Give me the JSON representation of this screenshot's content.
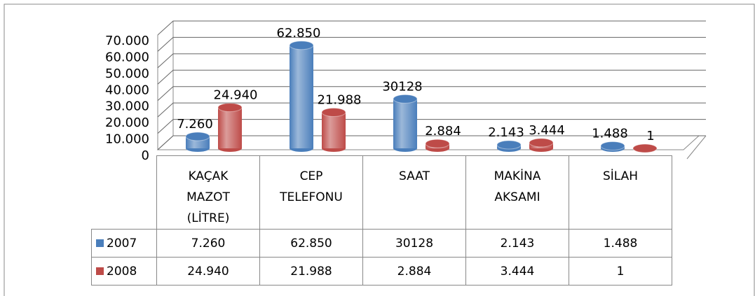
{
  "chart_data": {
    "type": "bar",
    "categories": [
      "KAÇAK MAZOT (LİTRE)",
      "CEP TELEFONU",
      "SAAT",
      "MAKİNA AKSAMI",
      "SİLAH"
    ],
    "series": [
      {
        "name": "2007",
        "color": "#4a7ebb",
        "values": [
          7260,
          62850,
          30128,
          2143,
          1488
        ],
        "value_labels": [
          "7.260",
          "62.850",
          "30128",
          "2.143",
          "1.488"
        ]
      },
      {
        "name": "2008",
        "color": "#be4b48",
        "values": [
          24940,
          21988,
          2884,
          3444,
          1
        ],
        "value_labels": [
          "24.940",
          "21.988",
          "2.884",
          "3.444",
          "1"
        ]
      }
    ],
    "ylim": [
      0,
      70000
    ],
    "yticks": [
      0,
      {
        "value": 10000,
        "label": "10.000"
      },
      {
        "value": 20000,
        "label": "20.000"
      },
      {
        "value": 30000,
        "label": "30.000"
      },
      {
        "value": 40000,
        "label": "40.000"
      },
      {
        "value": 50000,
        "label": "50.000"
      },
      {
        "value": 60000,
        "label": "60.000"
      },
      {
        "value": 70000,
        "label": "70.000"
      }
    ],
    "grid": true
  }
}
